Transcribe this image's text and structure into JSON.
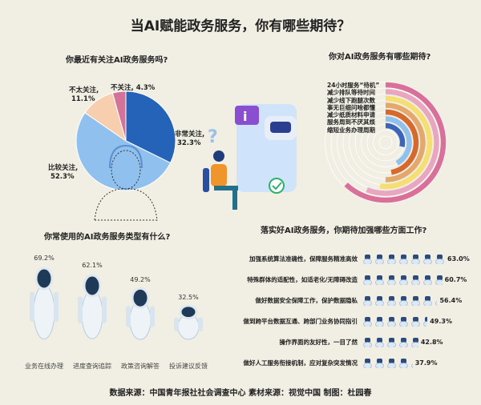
{
  "title": "当AI赋能政务服务，你有哪些期待？",
  "footer": "数据来源：中国青年报社社会调查中心   素材来源：视觉中国   制图：杜园春",
  "chart_data": [
    {
      "type": "pie",
      "title": "你最近有关注AI政务服务吗?",
      "categories": [
        "非常关注",
        "比较关注",
        "不太关注",
        "不关注"
      ],
      "values": [
        32.3,
        52.3,
        11.1,
        4.3
      ],
      "labels": [
        "32.3%",
        "52.3%",
        "11.1%",
        "4.3%"
      ],
      "colors": [
        "#2563b8",
        "#8fc0ee",
        "#f8cfae",
        "#d4739a"
      ]
    },
    {
      "type": "bar",
      "subtype": "radial",
      "title": "你对AI政务服务有哪些期待?",
      "categories": [
        "24小时服务“待机”",
        "减少排队等待时间",
        "减少线下跑腿次数",
        "事无巨细问啥都懂",
        "减少纸质材料申请",
        "服务周到不厌其烦",
        "缩短业务办理周期"
      ],
      "values": [
        62,
        56,
        52,
        50,
        47,
        42,
        29
      ],
      "colors": [
        "#d9709a",
        "#e8a6c0",
        "#f5de72",
        "#e5a86c",
        "#d5692e",
        "#8fc0ee",
        "#3b64bd"
      ]
    },
    {
      "type": "bar",
      "subtype": "pictograph",
      "title": "你常使用的AI政务服务类型有什么?",
      "categories": [
        "业务在线办理",
        "进度查询追踪",
        "政策咨询解答",
        "投诉建议反馈"
      ],
      "values": [
        69.2,
        62.1,
        49.2,
        32.5
      ],
      "labels": [
        "69.2%",
        "62.1%",
        "49.2%",
        "32.5%"
      ]
    },
    {
      "type": "bar",
      "subtype": "pictograph",
      "title": "落实好AI政务服务，你期待加强哪些方面工作?",
      "categories": [
        "加强系统算法准确性，保障服务精准高效",
        "特殊群体的适配性，如适老化/无障碍改造",
        "做好数据安全保障工作，保护数据隐私",
        "做到跨平台数据互通、跨部门业务协同指引",
        "操作界面的友好性，一目了然",
        "做好人工服务衔接机制，应对复杂突发情况"
      ],
      "values": [
        63.0,
        60.7,
        56.4,
        49.3,
        42.8,
        37.9
      ],
      "labels": [
        "63.0%",
        "60.7%",
        "56.4%",
        "49.3%",
        "42.8%",
        "37.9%"
      ]
    }
  ]
}
